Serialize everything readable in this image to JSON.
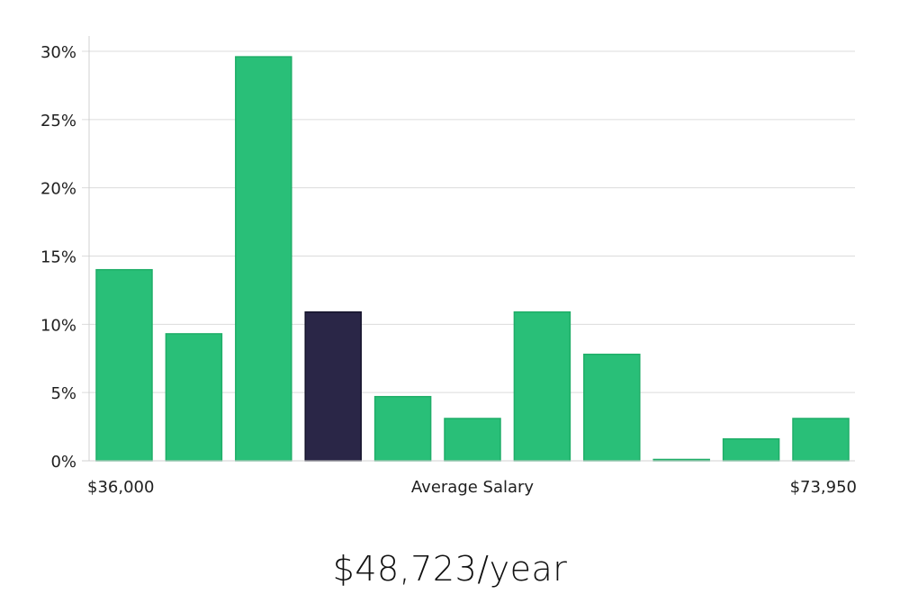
{
  "chart_data": {
    "type": "bar",
    "categories": [
      "",
      "",
      "",
      "",
      "",
      "",
      "",
      "",
      "",
      "",
      ""
    ],
    "values": [
      14.0,
      9.3,
      29.6,
      10.9,
      4.7,
      3.1,
      10.9,
      7.8,
      0.1,
      1.6,
      3.1
    ],
    "highlight_index": 3,
    "y_ticks": [
      "0%",
      "5%",
      "10%",
      "15%",
      "20%",
      "25%",
      "30%"
    ],
    "ylim": [
      0,
      31
    ],
    "x_min_label": "$36,000",
    "x_max_label": "$73,950",
    "xlabel": "Average Salary",
    "grid": true,
    "colors": {
      "bar": "#29bf78",
      "bar_stroke": "#1fae68",
      "highlight": "#2a2647",
      "highlight_stroke": "#15132b"
    }
  },
  "headline": "$48,723/year"
}
